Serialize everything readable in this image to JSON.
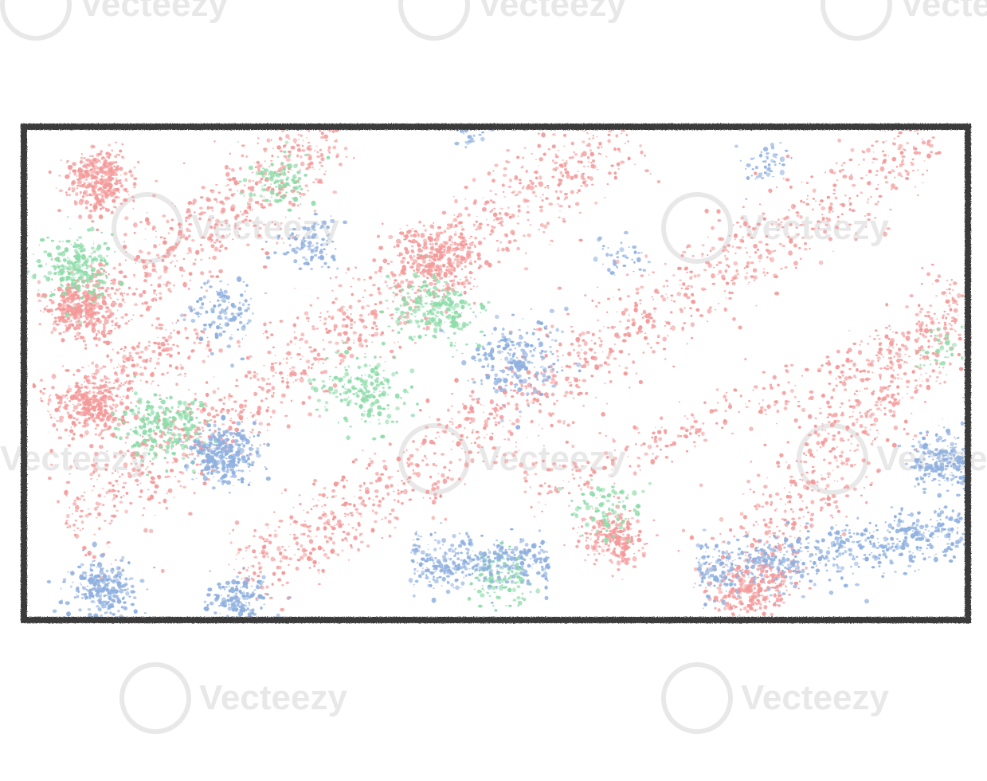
{
  "image": {
    "description_kind": "crayon-textured rectangle frame filled with speckled diagonal bands",
    "background_color": "#ffffff",
    "frame_color": "#3a3a3a",
    "speckle_colors": {
      "red": "#f49a9a",
      "blue": "#8fb0e0",
      "green": "#8fdcaa"
    },
    "watermark": {
      "text": "Vecteezy",
      "color": "#e8e8e8"
    }
  }
}
